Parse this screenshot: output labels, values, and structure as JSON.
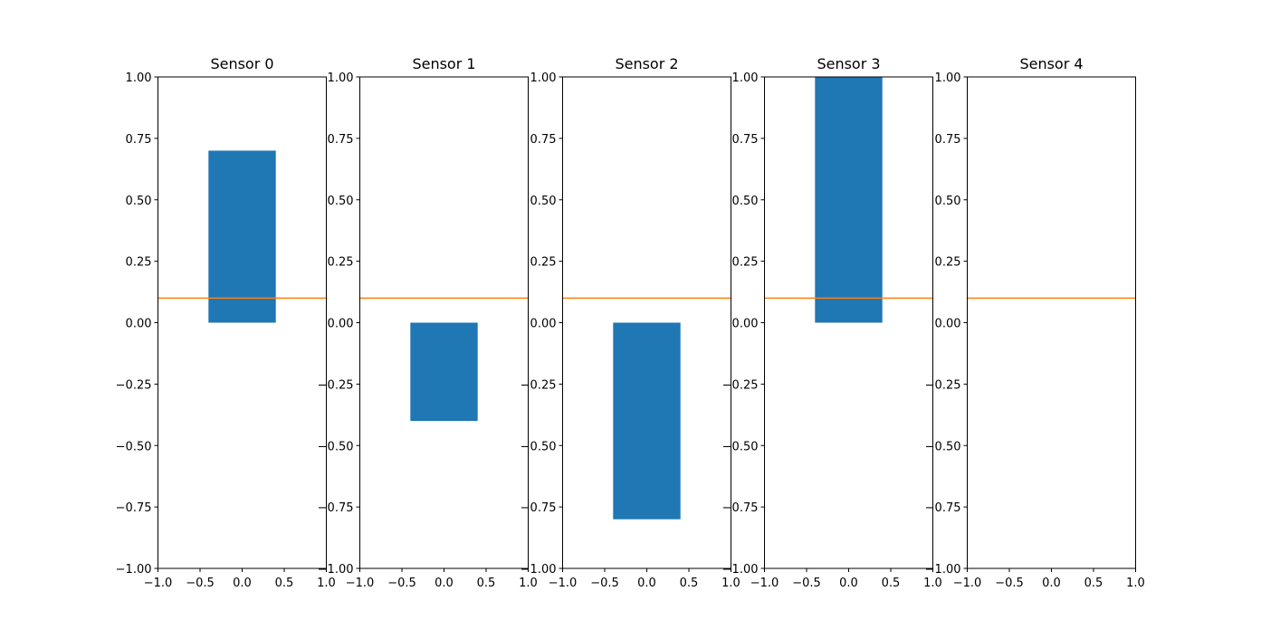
{
  "chart_data": {
    "type": "bar",
    "bar_color": "#1f77b4",
    "threshold_color": "#ff7f0e",
    "bar_half_width": 0.4,
    "threshold": 0.1,
    "xlim": [
      -1.0,
      1.0
    ],
    "ylim": [
      -1.0,
      1.0
    ],
    "xticks": [
      "−1.0",
      "−0.5",
      "0.0",
      "0.5",
      "1.0"
    ],
    "xtick_values": [
      -1.0,
      -0.5,
      0.0,
      0.5,
      1.0
    ],
    "yticks": [
      "−1.00",
      "−0.75",
      "−0.50",
      "−0.25",
      "0.00",
      "0.25",
      "0.50",
      "0.75",
      "1.00"
    ],
    "ytick_values": [
      -1.0,
      -0.75,
      -0.5,
      -0.25,
      0.0,
      0.25,
      0.5,
      0.75,
      1.0
    ],
    "grid": false,
    "legend": "none",
    "panels": [
      {
        "title": "Sensor 0",
        "value": 0.7
      },
      {
        "title": "Sensor 1",
        "value": -0.4
      },
      {
        "title": "Sensor 2",
        "value": -0.8
      },
      {
        "title": "Sensor 3",
        "value": 1.0
      },
      {
        "title": "Sensor 4",
        "value": 0.0
      }
    ]
  }
}
